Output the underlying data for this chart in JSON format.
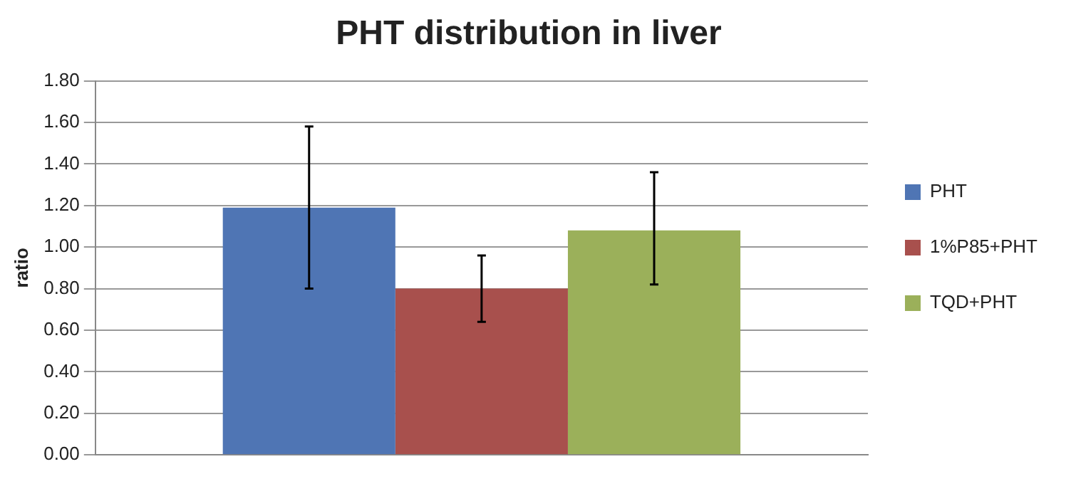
{
  "chart_data": {
    "type": "bar",
    "title": "PHT distribution in liver",
    "ylabel": "ratio",
    "categories": [
      null
    ],
    "series": [
      {
        "name": "PHT",
        "color": "#4f75b4",
        "values": [
          1.19
        ],
        "errors": [
          [
            0.8,
            1.58
          ]
        ]
      },
      {
        "name": "1%P85+PHT",
        "color": "#a8504d",
        "values": [
          0.8
        ],
        "errors": [
          [
            0.64,
            0.96
          ]
        ]
      },
      {
        "name": "TQD+PHT",
        "color": "#9bb05a",
        "values": [
          1.08
        ],
        "errors": [
          [
            0.82,
            1.36
          ]
        ]
      }
    ],
    "ylim": [
      0,
      1.8
    ],
    "yticks": [
      {
        "value": 0,
        "label": "0.00"
      },
      {
        "value": 0.2,
        "label": "0.20"
      },
      {
        "value": 0.4,
        "label": "0.40"
      },
      {
        "value": 0.6,
        "label": "0.60"
      },
      {
        "value": 0.8,
        "label": "0.80"
      },
      {
        "value": 1,
        "label": "1.00"
      },
      {
        "value": 1.2,
        "label": "1.20"
      },
      {
        "value": 1.4,
        "label": "1.40"
      },
      {
        "value": 1.6,
        "label": "1.60"
      },
      {
        "value": 1.8,
        "label": "1.80"
      }
    ],
    "grid": "y",
    "legend": "right"
  }
}
